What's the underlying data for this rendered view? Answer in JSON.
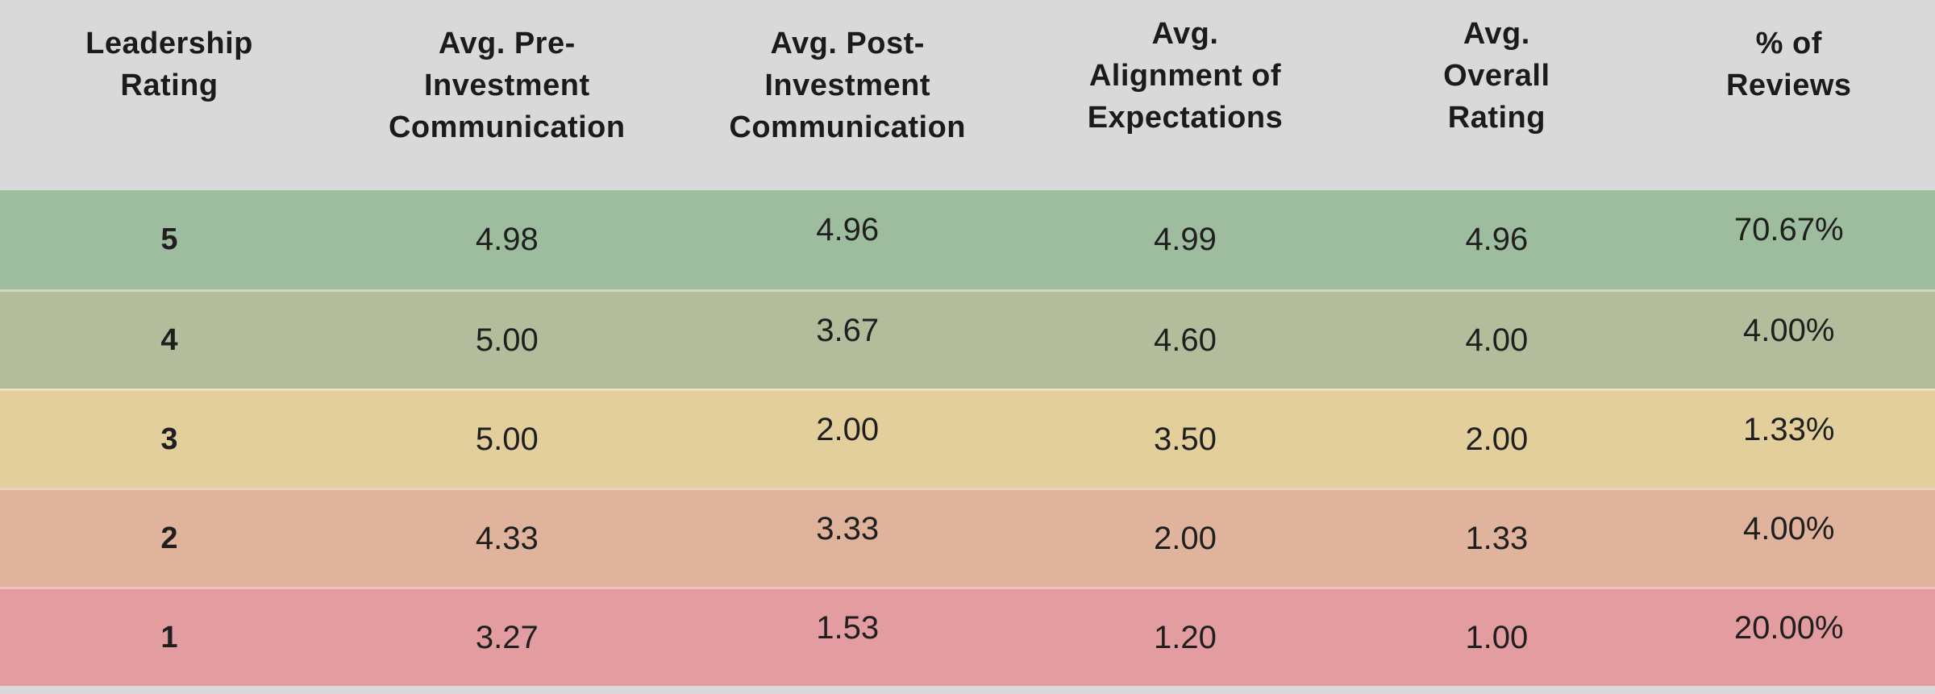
{
  "table": {
    "headers": [
      "Leadership\nRating",
      "Avg. Pre-\nInvestment\nCommunication",
      "Avg. Post-\nInvestment\nCommunication",
      "Avg.\nAlignment of\nExpectations",
      "Avg.\nOverall\nRating",
      "% of\nReviews"
    ],
    "rows": [
      {
        "color": "#9ebd9e",
        "cells": [
          "5",
          "4.98",
          "4.96",
          "4.99",
          "4.96",
          "70.67%"
        ]
      },
      {
        "color": "#b3bd9c",
        "cells": [
          "4",
          "5.00",
          "3.67",
          "4.60",
          "4.00",
          "4.00%"
        ]
      },
      {
        "color": "#e3cf9c",
        "cells": [
          "3",
          "5.00",
          "2.00",
          "3.50",
          "2.00",
          "1.33%"
        ]
      },
      {
        "color": "#dfb39c",
        "cells": [
          "2",
          "4.33",
          "3.33",
          "2.00",
          "1.33",
          "4.00%"
        ]
      },
      {
        "color": "#e39ca0",
        "cells": [
          "1",
          "3.27",
          "1.53",
          "1.20",
          "1.00",
          "20.00%"
        ]
      }
    ]
  },
  "colors": {
    "header_bg": "#d9d9d9",
    "text": "#1d1d1d",
    "row_separator": "rgba(255,255,255,0.38)"
  },
  "chart_data": {
    "type": "table",
    "title": "",
    "columns": [
      "Leadership Rating",
      "Avg. Pre-Investment Communication",
      "Avg. Post-Investment Communication",
      "Avg. Alignment of Expectations",
      "Avg. Overall Rating",
      "% of Reviews"
    ],
    "rows": [
      [
        5,
        4.98,
        4.96,
        4.99,
        4.96,
        "70.67%"
      ],
      [
        4,
        5.0,
        3.67,
        4.6,
        4.0,
        "4.00%"
      ],
      [
        3,
        5.0,
        2.0,
        3.5,
        2.0,
        "1.33%"
      ],
      [
        2,
        4.33,
        3.33,
        2.0,
        1.33,
        "4.00%"
      ],
      [
        1,
        3.27,
        1.53,
        1.2,
        1.0,
        "20.00%"
      ]
    ],
    "row_colors": [
      "#9ebd9e",
      "#b3bd9c",
      "#e3cf9c",
      "#dfb39c",
      "#e39ca0"
    ],
    "layout": "rows color-graded green (5) to red (1); gray header band; values center-aligned"
  }
}
